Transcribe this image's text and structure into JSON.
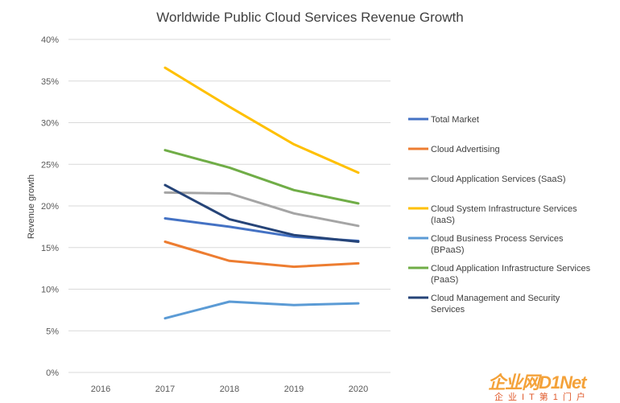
{
  "chart_data": {
    "type": "line",
    "title": "Worldwide Public Cloud Services Revenue Growth",
    "ylabel": "Revenue growth",
    "xlabel": "",
    "categories": [
      "2016",
      "2017",
      "2018",
      "2019",
      "2020"
    ],
    "ylim": [
      0,
      40
    ],
    "yticks": [
      "0%",
      "5%",
      "10%",
      "15%",
      "20%",
      "25%",
      "30%",
      "35%",
      "40%"
    ],
    "yticks_values": [
      0,
      5,
      10,
      15,
      20,
      25,
      30,
      35,
      40
    ],
    "grid": true,
    "legend_position": "right",
    "series": [
      {
        "name": "Total Market",
        "color": "#4472c4",
        "values": [
          null,
          18.5,
          17.5,
          16.3,
          15.8
        ]
      },
      {
        "name": "Cloud Advertising",
        "color": "#ed7d31",
        "values": [
          null,
          15.7,
          13.4,
          12.7,
          13.1
        ]
      },
      {
        "name": "Cloud Application Services (SaaS)",
        "color": "#a5a5a5",
        "values": [
          null,
          21.6,
          21.5,
          19.1,
          17.6
        ]
      },
      {
        "name": "Cloud System Infrastructure Services (IaaS)",
        "color": "#ffc000",
        "values": [
          null,
          36.6,
          31.9,
          27.4,
          24.0
        ]
      },
      {
        "name": "Cloud Business Process Services (BPaaS)",
        "color": "#5b9bd5",
        "values": [
          null,
          6.5,
          8.5,
          8.1,
          8.3
        ]
      },
      {
        "name": "Cloud Application Infrastructure Services (PaaS)",
        "color": "#70ad47",
        "values": [
          null,
          26.7,
          24.6,
          21.9,
          20.3
        ]
      },
      {
        "name": "Cloud Management and Security Services",
        "color": "#264478",
        "values": [
          null,
          22.5,
          18.4,
          16.5,
          15.7
        ]
      }
    ]
  },
  "watermark": {
    "brand": "企业网D1Net",
    "tagline": "企业IT第1门户"
  }
}
